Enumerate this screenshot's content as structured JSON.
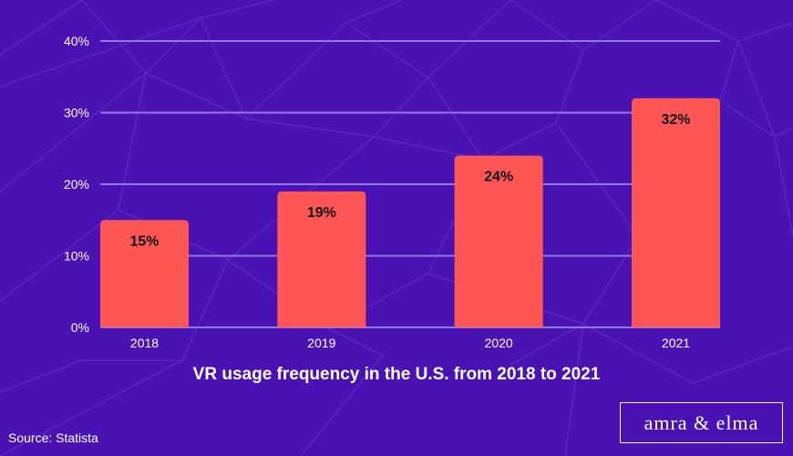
{
  "colors": {
    "background": "#4a12b3",
    "bar": "#fe5555",
    "grid": "#8f7be0",
    "text": "#ffffff",
    "data_label": "#141414"
  },
  "chart_data": {
    "type": "bar",
    "title": "VR usage frequency in the U.S. from 2018 to 2021",
    "categories": [
      "2018",
      "2019",
      "2020",
      "2021"
    ],
    "values": [
      15,
      19,
      24,
      32
    ],
    "data_labels": [
      "15%",
      "19%",
      "24%",
      "32%"
    ],
    "ylim": [
      0,
      40
    ],
    "yticks": [
      0,
      10,
      20,
      30,
      40
    ],
    "ytick_labels": [
      "0%",
      "10%",
      "20%",
      "30%",
      "40%"
    ],
    "grid": true,
    "xlabel": "",
    "ylabel": ""
  },
  "source": "Source: Statista",
  "logo": "amra & elma"
}
